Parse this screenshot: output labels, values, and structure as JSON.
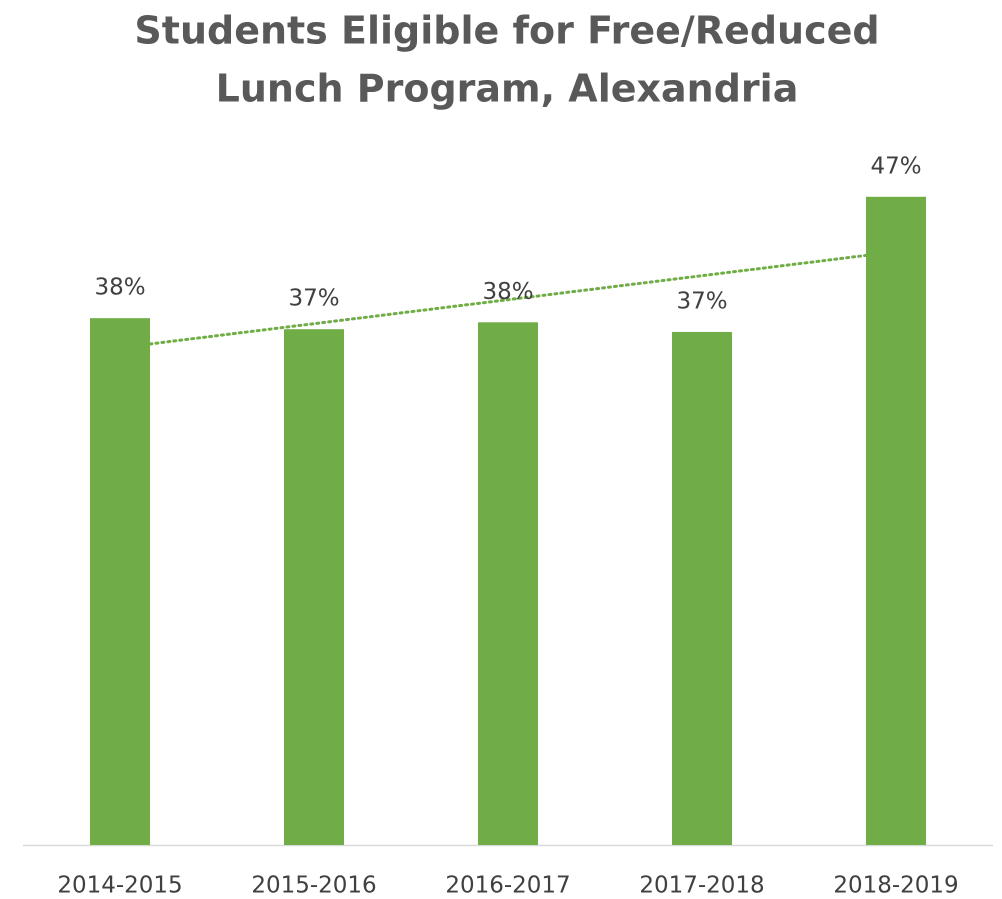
{
  "chart_data": {
    "type": "bar",
    "title": [
      "Students Eligible for Free/Reduced",
      "Lunch Program, Alexandria"
    ],
    "categories": [
      "2014-2015",
      "2015-2016",
      "2016-2017",
      "2017-2018",
      "2018-2019"
    ],
    "values": [
      38.2,
      37.4,
      37.9,
      37.2,
      47
    ],
    "value_labels": [
      "38%",
      "37%",
      "38%",
      "37%",
      "47%"
    ],
    "color": "#70ad47",
    "ylim": [
      0,
      48
    ],
    "trendline": "linear",
    "trendline_color": "#70ad47"
  }
}
